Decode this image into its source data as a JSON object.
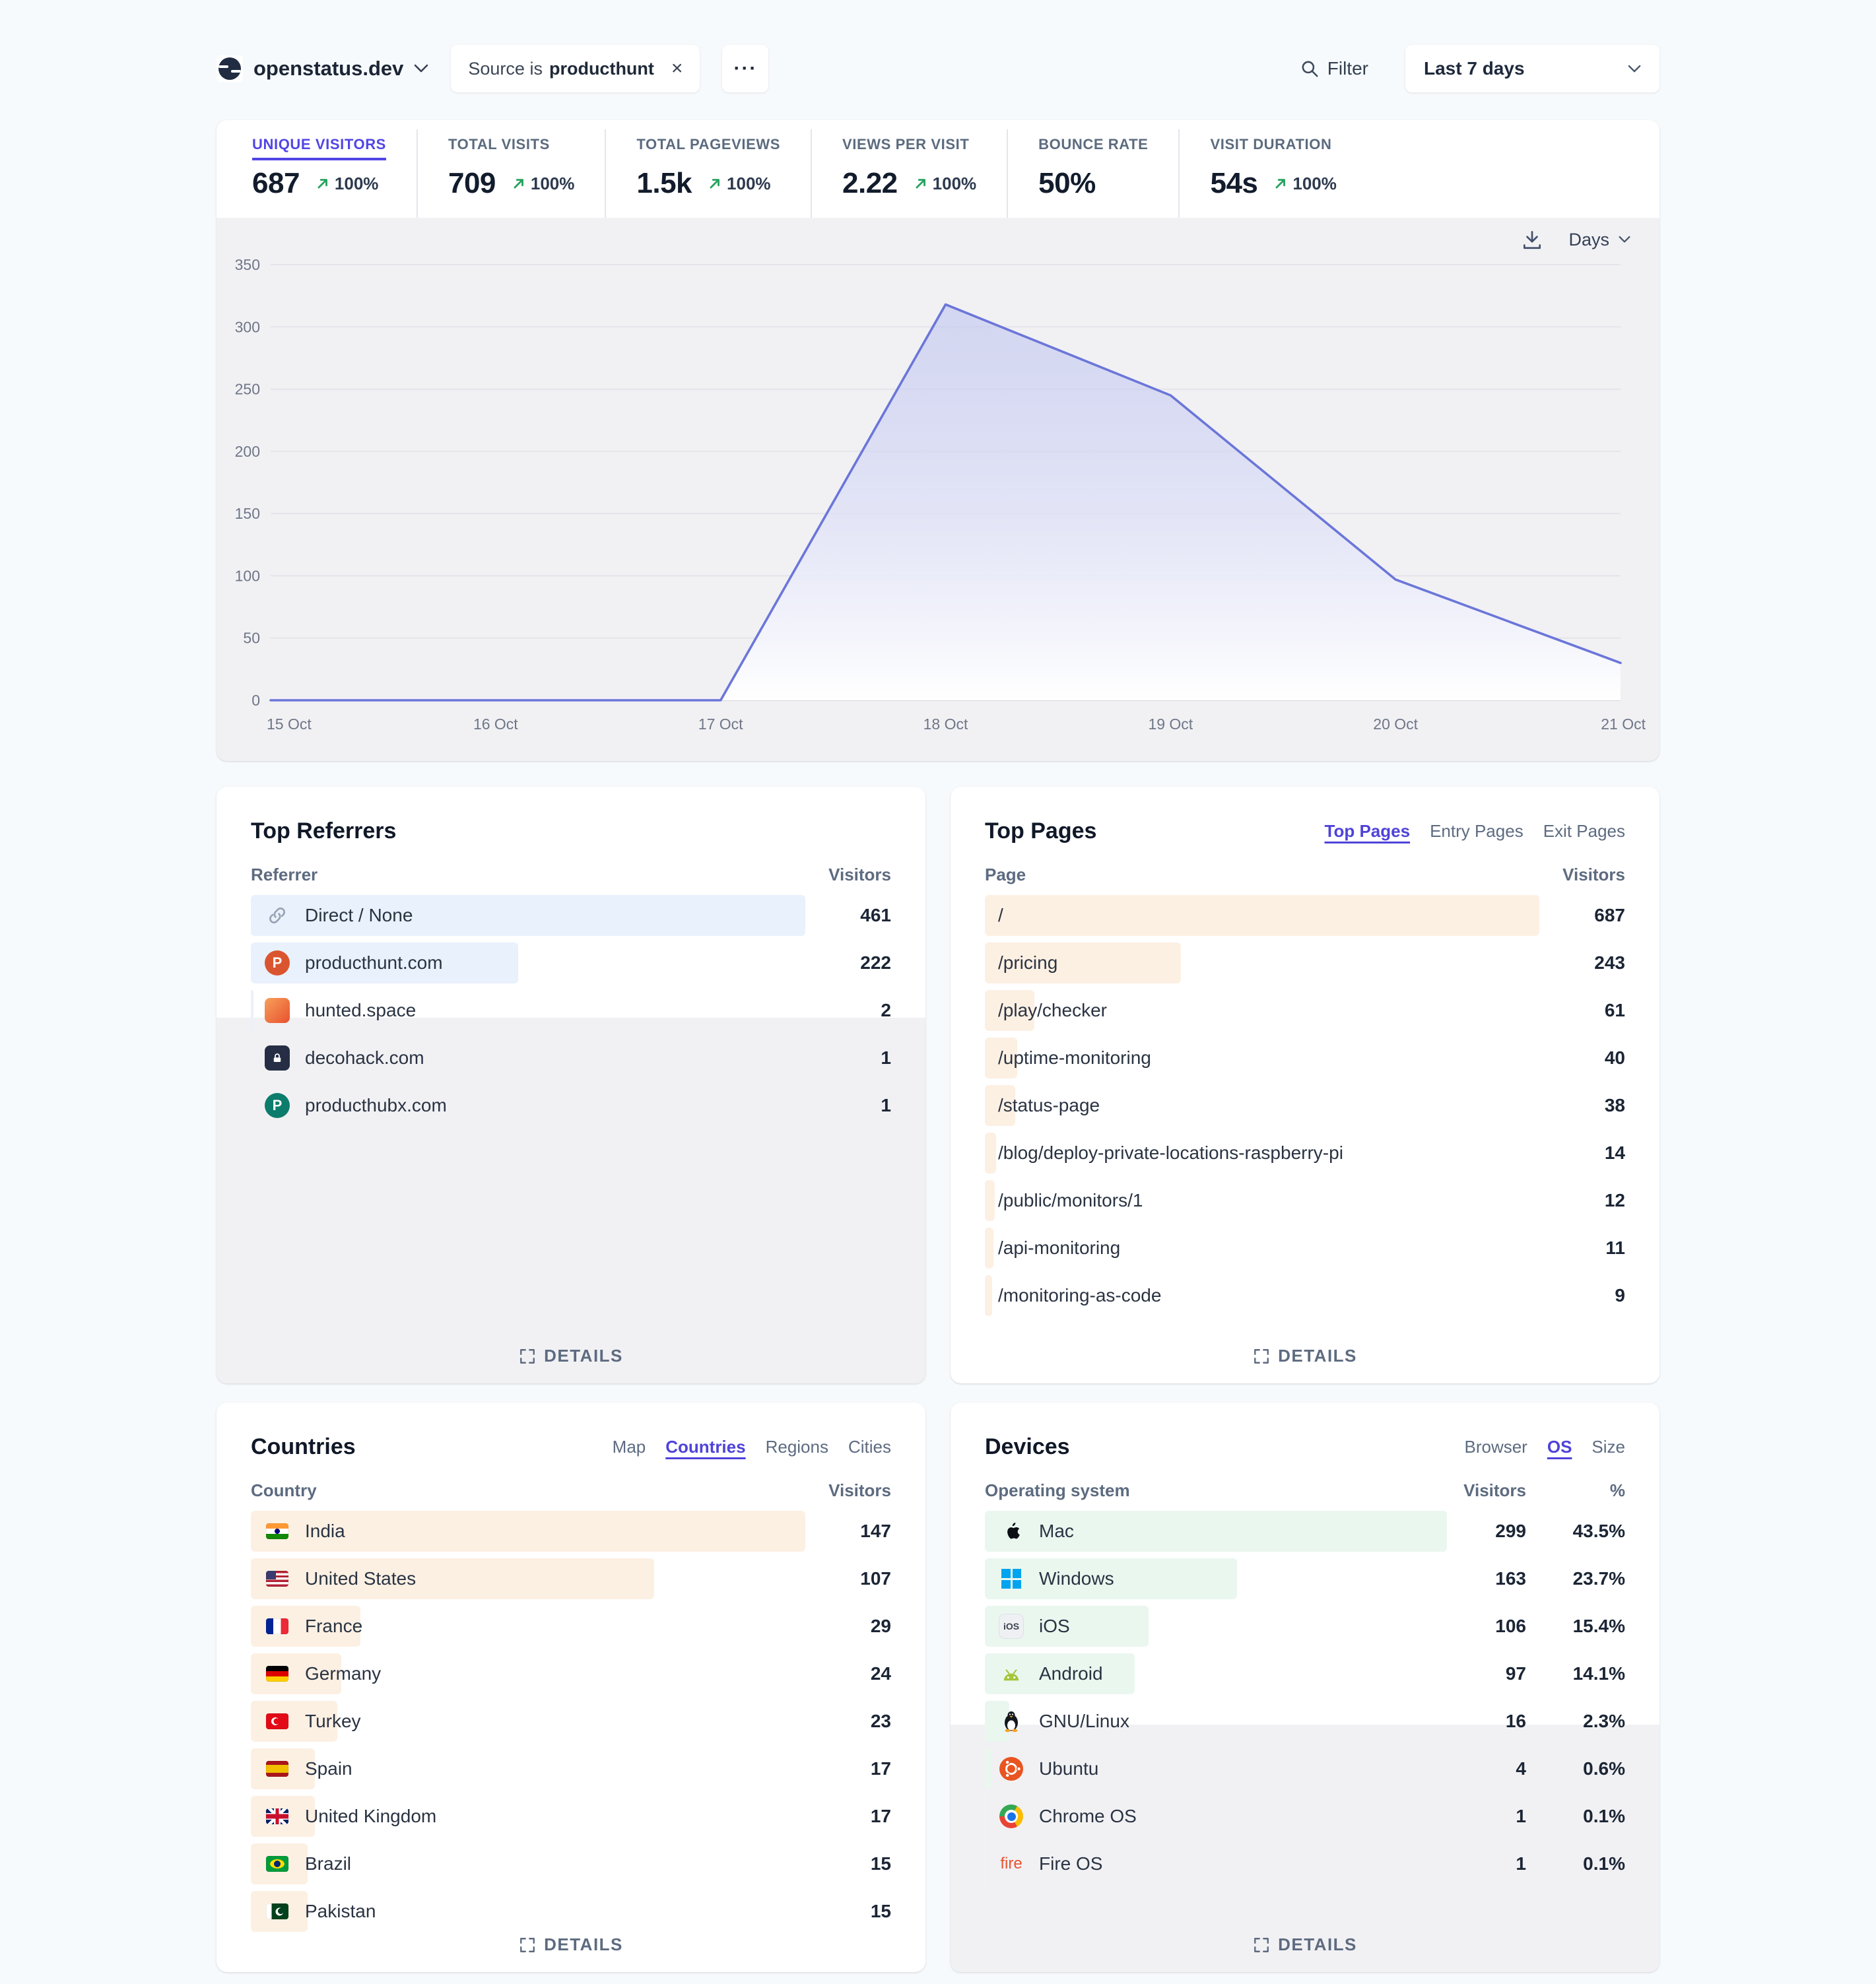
{
  "header": {
    "site_name": "openstatus.dev",
    "filter_chip": {
      "label": "Source is",
      "value": "producthunt",
      "close": "×"
    },
    "more_label": "···",
    "filter_label": "Filter",
    "date_range": "Last 7 days"
  },
  "stats": [
    {
      "label": "UNIQUE VISITORS",
      "value": "687",
      "change": "100%",
      "selected": true
    },
    {
      "label": "TOTAL VISITS",
      "value": "709",
      "change": "100%",
      "selected": false
    },
    {
      "label": "TOTAL PAGEVIEWS",
      "value": "1.5k",
      "change": "100%",
      "selected": false
    },
    {
      "label": "VIEWS PER VISIT",
      "value": "2.22",
      "change": "100%",
      "selected": false
    },
    {
      "label": "BOUNCE RATE",
      "value": "50%",
      "change": null,
      "selected": false
    },
    {
      "label": "VISIT DURATION",
      "value": "54s",
      "change": "100%",
      "selected": false
    }
  ],
  "chart_data": {
    "type": "area",
    "title": "Unique visitors over time",
    "x": [
      "15 Oct",
      "16 Oct",
      "17 Oct",
      "18 Oct",
      "19 Oct",
      "20 Oct",
      "21 Oct"
    ],
    "values": [
      0,
      0,
      0,
      318,
      245,
      97,
      30
    ],
    "ylim": [
      0,
      350
    ],
    "yticks": [
      0,
      50,
      100,
      150,
      200,
      250,
      300,
      350
    ],
    "interval": "Days",
    "line_color": "#6b76d9",
    "grid": true,
    "legend": "none"
  },
  "panels": {
    "referrers": {
      "title": "Top Referrers",
      "columns": [
        "Referrer",
        "Visitors"
      ],
      "details": "DETAILS",
      "bar_color": "#e8f1fc",
      "rows": [
        {
          "name": "Direct / None",
          "visitors": 461,
          "icon": "link-icon"
        },
        {
          "name": "producthunt.com",
          "visitors": 222,
          "icon": "producthunt-favicon"
        },
        {
          "name": "hunted.space",
          "visitors": 2,
          "icon": "hunted-space-favicon"
        },
        {
          "name": "decohack.com",
          "visitors": 1,
          "icon": "decohack-favicon"
        },
        {
          "name": "producthubx.com",
          "visitors": 1,
          "icon": "producthubx-favicon"
        }
      ]
    },
    "pages": {
      "title": "Top Pages",
      "tabs": [
        "Top Pages",
        "Entry Pages",
        "Exit Pages"
      ],
      "active_tab": "Top Pages",
      "columns": [
        "Page",
        "Visitors"
      ],
      "details": "DETAILS",
      "bar_color": "#fcf0e3",
      "rows": [
        {
          "name": "/",
          "visitors": 687
        },
        {
          "name": "/pricing",
          "visitors": 243
        },
        {
          "name": "/play/checker",
          "visitors": 61
        },
        {
          "name": "/uptime-monitoring",
          "visitors": 40
        },
        {
          "name": "/status-page",
          "visitors": 38
        },
        {
          "name": "/blog/deploy-private-locations-raspberry-pi",
          "visitors": 14
        },
        {
          "name": "/public/monitors/1",
          "visitors": 12
        },
        {
          "name": "/api-monitoring",
          "visitors": 11
        },
        {
          "name": "/monitoring-as-code",
          "visitors": 9
        }
      ]
    },
    "countries": {
      "title": "Countries",
      "tabs": [
        "Map",
        "Countries",
        "Regions",
        "Cities"
      ],
      "active_tab": "Countries",
      "columns": [
        "Country",
        "Visitors"
      ],
      "details": "DETAILS",
      "bar_color": "#fcf0e3",
      "rows": [
        {
          "name": "India",
          "visitors": 147,
          "icon": "india-flag"
        },
        {
          "name": "United States",
          "visitors": 107,
          "icon": "us-flag"
        },
        {
          "name": "France",
          "visitors": 29,
          "icon": "france-flag"
        },
        {
          "name": "Germany",
          "visitors": 24,
          "icon": "germany-flag"
        },
        {
          "name": "Turkey",
          "visitors": 23,
          "icon": "turkey-flag"
        },
        {
          "name": "Spain",
          "visitors": 17,
          "icon": "spain-flag"
        },
        {
          "name": "United Kingdom",
          "visitors": 17,
          "icon": "uk-flag"
        },
        {
          "name": "Brazil",
          "visitors": 15,
          "icon": "brazil-flag"
        },
        {
          "name": "Pakistan",
          "visitors": 15,
          "icon": "pakistan-flag"
        }
      ]
    },
    "devices": {
      "title": "Devices",
      "tabs": [
        "Browser",
        "OS",
        "Size"
      ],
      "active_tab": "OS",
      "columns": [
        "Operating system",
        "Visitors",
        "%"
      ],
      "details": "DETAILS",
      "bar_color": "#eaf7ef",
      "rows": [
        {
          "name": "Mac",
          "visitors": 299,
          "percent": "43.5%",
          "icon": "apple-icon"
        },
        {
          "name": "Windows",
          "visitors": 163,
          "percent": "23.7%",
          "icon": "windows-icon"
        },
        {
          "name": "iOS",
          "visitors": 106,
          "percent": "15.4%",
          "icon": "ios-icon"
        },
        {
          "name": "Android",
          "visitors": 97,
          "percent": "14.1%",
          "icon": "android-icon"
        },
        {
          "name": "GNU/Linux",
          "visitors": 16,
          "percent": "2.3%",
          "icon": "linux-icon"
        },
        {
          "name": "Ubuntu",
          "visitors": 4,
          "percent": "0.6%",
          "icon": "ubuntu-icon"
        },
        {
          "name": "Chrome OS",
          "visitors": 1,
          "percent": "0.1%",
          "icon": "chromeos-icon"
        },
        {
          "name": "Fire OS",
          "visitors": 1,
          "percent": "0.1%",
          "icon": "fireos-icon"
        }
      ]
    }
  },
  "colors": {
    "accent": "#5145e5",
    "tab_active": "#4f43d9",
    "positive_green": "#27a35f",
    "chart_line": "#6b76d9",
    "page_bg": "#f7fafc",
    "chart_bg": "#f1f1f4"
  }
}
